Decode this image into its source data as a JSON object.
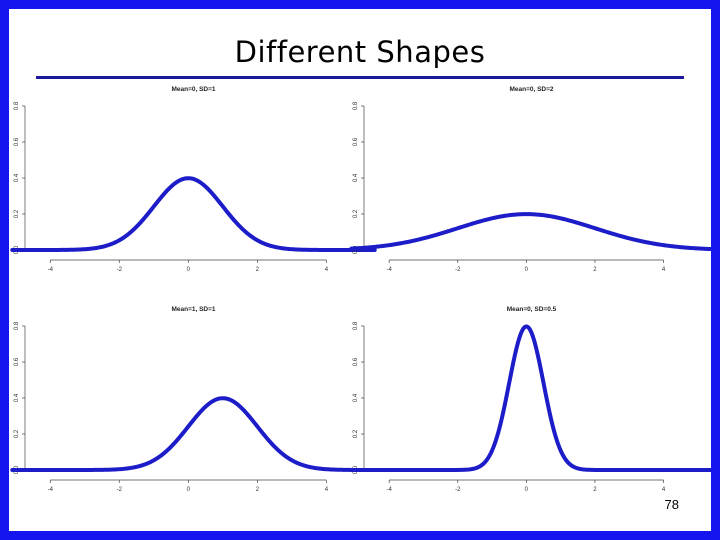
{
  "slide": {
    "title": "Different Shapes",
    "page_number": "78",
    "border_color": "#1414ee",
    "rule_color": "#1a1a9a"
  },
  "chart_data": [
    {
      "type": "line",
      "title": "Mean=0, SD=1",
      "mean": 0,
      "sd": 1,
      "xlim": [
        -4.5,
        4.8
      ],
      "ylim": [
        0,
        0.8
      ],
      "xticks": [
        -4,
        -2,
        0,
        2,
        4
      ],
      "yticks": [
        0.0,
        0.2,
        0.4,
        0.6,
        0.8
      ],
      "xticklabels": [
        "-4",
        "-2",
        "0",
        "2",
        "4"
      ],
      "yticklabels": [
        "0.0",
        "0.2",
        "0.4",
        "0.6",
        "0.8"
      ],
      "line_color": "#1c1cc8",
      "x": [
        -4,
        -3,
        -2,
        -1.5,
        -1,
        -0.5,
        0,
        0.5,
        1,
        1.5,
        2,
        3,
        4
      ],
      "y": [
        0.0001,
        0.0044,
        0.054,
        0.1295,
        0.242,
        0.3521,
        0.3989,
        0.3521,
        0.242,
        0.1295,
        0.054,
        0.0044,
        0.0001
      ]
    },
    {
      "type": "line",
      "title": "Mean=0, SD=2",
      "mean": 0,
      "sd": 2,
      "xlim": [
        -4.5,
        4.8
      ],
      "ylim": [
        0,
        0.8
      ],
      "xticks": [
        -4,
        -2,
        0,
        2,
        4
      ],
      "yticks": [
        0.0,
        0.2,
        0.4,
        0.6,
        0.8
      ],
      "xticklabels": [
        "-4",
        "-2",
        "0",
        "2",
        "4"
      ],
      "yticklabels": [
        "0.0",
        "0.2",
        "0.4",
        "0.6",
        "0.8"
      ],
      "line_color": "#1c1cc8",
      "x": [
        -4,
        -3,
        -2,
        -1,
        0,
        1,
        2,
        3,
        4
      ],
      "y": [
        0.027,
        0.0648,
        0.121,
        0.176,
        0.1995,
        0.176,
        0.121,
        0.0648,
        0.027
      ]
    },
    {
      "type": "line",
      "title": "Mean=1, SD=1",
      "mean": 1,
      "sd": 1,
      "xlim": [
        -4.5,
        4.8
      ],
      "ylim": [
        0,
        0.8
      ],
      "xticks": [
        -4,
        -2,
        0,
        2,
        4
      ],
      "yticks": [
        0.0,
        0.2,
        0.4,
        0.6,
        0.8
      ],
      "xticklabels": [
        "-4",
        "-2",
        "0",
        "2",
        "4"
      ],
      "yticklabels": [
        "0.0",
        "0.2",
        "0.4",
        "0.6",
        "0.8"
      ],
      "line_color": "#1c1cc8",
      "x": [
        -4,
        -3,
        -2,
        -1,
        0,
        0.5,
        1,
        1.5,
        2,
        3,
        4
      ],
      "y": [
        0.0,
        0.0001,
        0.0044,
        0.054,
        0.242,
        0.3521,
        0.3989,
        0.3521,
        0.242,
        0.054,
        0.0044
      ]
    },
    {
      "type": "line",
      "title": "Mean=0, SD=0.5",
      "mean": 0,
      "sd": 0.5,
      "xlim": [
        -4.5,
        4.8
      ],
      "ylim": [
        0,
        0.8
      ],
      "xticks": [
        -4,
        -2,
        0,
        2,
        4
      ],
      "yticks": [
        0.0,
        0.2,
        0.4,
        0.6,
        0.8
      ],
      "xticklabels": [
        "-4",
        "-2",
        "0",
        "2",
        "4"
      ],
      "yticklabels": [
        "0.0",
        "0.2",
        "0.4",
        "0.6",
        "0.8"
      ],
      "line_color": "#1c1cc8",
      "x": [
        -4,
        -2,
        -1.5,
        -1,
        -0.5,
        -0.25,
        0,
        0.25,
        0.5,
        1,
        1.5,
        2,
        4
      ],
      "y": [
        0.0,
        0.0,
        0.0089,
        0.108,
        0.4839,
        0.7041,
        0.7979,
        0.7041,
        0.4839,
        0.108,
        0.0089,
        0.0,
        0.0
      ]
    }
  ]
}
